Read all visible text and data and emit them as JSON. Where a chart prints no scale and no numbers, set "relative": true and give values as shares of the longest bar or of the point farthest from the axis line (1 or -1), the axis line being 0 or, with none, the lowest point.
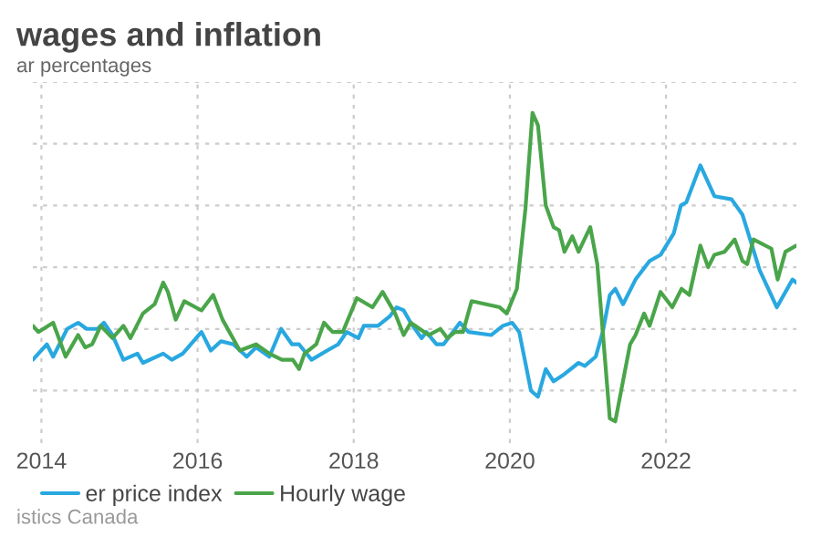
{
  "chart_data": {
    "type": "line",
    "title": "wages and inflation",
    "subtitle": "ar percentages",
    "annotations": [
      "istics Canada"
    ],
    "relative": true,
    "xlim": [
      2013.89,
      2023.67
    ],
    "xticks": [
      2014,
      2016,
      2018,
      2020,
      2022
    ],
    "grid": true,
    "legend": "bottom",
    "marker": "none",
    "line_style": "solid",
    "series": [
      {
        "name": "er price index",
        "color": "#29a8e0",
        "x": [
          2013.89,
          2014.07,
          2014.15,
          2014.33,
          2014.47,
          2014.58,
          2014.72,
          2014.8,
          2014.91,
          2015.05,
          2015.23,
          2015.3,
          2015.56,
          2015.67,
          2015.81,
          2016.05,
          2016.17,
          2016.3,
          2016.46,
          2016.63,
          2016.75,
          2016.92,
          2017.07,
          2017.21,
          2017.3,
          2017.46,
          2017.66,
          2017.8,
          2017.91,
          2018.06,
          2018.13,
          2018.31,
          2018.46,
          2018.55,
          2018.64,
          2018.73,
          2018.87,
          2018.93,
          2019.06,
          2019.15,
          2019.36,
          2019.47,
          2019.76,
          2019.91,
          2020.03,
          2020.12,
          2020.27,
          2020.36,
          2020.46,
          2020.56,
          2020.68,
          2020.88,
          2020.96,
          2021.1,
          2021.19,
          2021.28,
          2021.35,
          2021.45,
          2021.61,
          2021.79,
          2021.93,
          2022.1,
          2022.19,
          2022.26,
          2022.44,
          2022.62,
          2022.84,
          2022.98,
          2023.2,
          2023.42,
          2023.62,
          2023.67
        ],
        "values": [
          0.2,
          0.25,
          0.21,
          0.3,
          0.32,
          0.3,
          0.3,
          0.32,
          0.28,
          0.2,
          0.22,
          0.19,
          0.22,
          0.2,
          0.22,
          0.29,
          0.23,
          0.26,
          0.25,
          0.21,
          0.24,
          0.21,
          0.3,
          0.25,
          0.25,
          0.2,
          0.23,
          0.25,
          0.29,
          0.27,
          0.31,
          0.31,
          0.34,
          0.37,
          0.36,
          0.32,
          0.27,
          0.29,
          0.25,
          0.25,
          0.32,
          0.29,
          0.28,
          0.31,
          0.32,
          0.29,
          0.1,
          0.08,
          0.17,
          0.13,
          0.15,
          0.19,
          0.18,
          0.21,
          0.29,
          0.41,
          0.43,
          0.38,
          0.46,
          0.52,
          0.54,
          0.61,
          0.7,
          0.71,
          0.83,
          0.73,
          0.72,
          0.67,
          0.49,
          0.37,
          0.46,
          0.45
        ]
      },
      {
        "name": "Hourly wage",
        "color": "#4aa54a",
        "x": [
          2013.89,
          2013.96,
          2014.15,
          2014.31,
          2014.47,
          2014.56,
          2014.65,
          2014.76,
          2014.91,
          2015.05,
          2015.14,
          2015.3,
          2015.45,
          2015.56,
          2015.62,
          2015.72,
          2015.83,
          2016.05,
          2016.2,
          2016.32,
          2016.54,
          2016.75,
          2016.92,
          2017.08,
          2017.22,
          2017.3,
          2017.37,
          2017.52,
          2017.62,
          2017.73,
          2017.86,
          2018.04,
          2018.24,
          2018.37,
          2018.53,
          2018.64,
          2018.73,
          2018.96,
          2019.11,
          2019.2,
          2019.3,
          2019.4,
          2019.51,
          2019.87,
          2019.96,
          2020.09,
          2020.2,
          2020.29,
          2020.36,
          2020.46,
          2020.56,
          2020.63,
          2020.7,
          2020.8,
          2020.88,
          2021.03,
          2021.12,
          2021.28,
          2021.35,
          2021.54,
          2021.61,
          2021.72,
          2021.79,
          2021.93,
          2022.08,
          2022.2,
          2022.3,
          2022.44,
          2022.54,
          2022.62,
          2022.75,
          2022.88,
          2022.98,
          2023.04,
          2023.12,
          2023.35,
          2023.43,
          2023.53,
          2023.67
        ],
        "values": [
          0.31,
          0.29,
          0.32,
          0.21,
          0.28,
          0.24,
          0.25,
          0.31,
          0.27,
          0.31,
          0.27,
          0.35,
          0.38,
          0.45,
          0.42,
          0.33,
          0.39,
          0.36,
          0.41,
          0.33,
          0.23,
          0.25,
          0.22,
          0.2,
          0.2,
          0.17,
          0.22,
          0.25,
          0.32,
          0.29,
          0.29,
          0.4,
          0.37,
          0.42,
          0.35,
          0.28,
          0.32,
          0.28,
          0.3,
          0.27,
          0.29,
          0.29,
          0.39,
          0.37,
          0.35,
          0.43,
          0.69,
          1,
          0.96,
          0.7,
          0.63,
          0.62,
          0.55,
          0.6,
          0.55,
          0.63,
          0.51,
          0.01,
          0,
          0.25,
          0.28,
          0.35,
          0.31,
          0.42,
          0.37,
          0.43,
          0.41,
          0.57,
          0.5,
          0.54,
          0.55,
          0.59,
          0.52,
          0.51,
          0.59,
          0.56,
          0.46,
          0.55,
          0.57
        ]
      }
    ]
  }
}
